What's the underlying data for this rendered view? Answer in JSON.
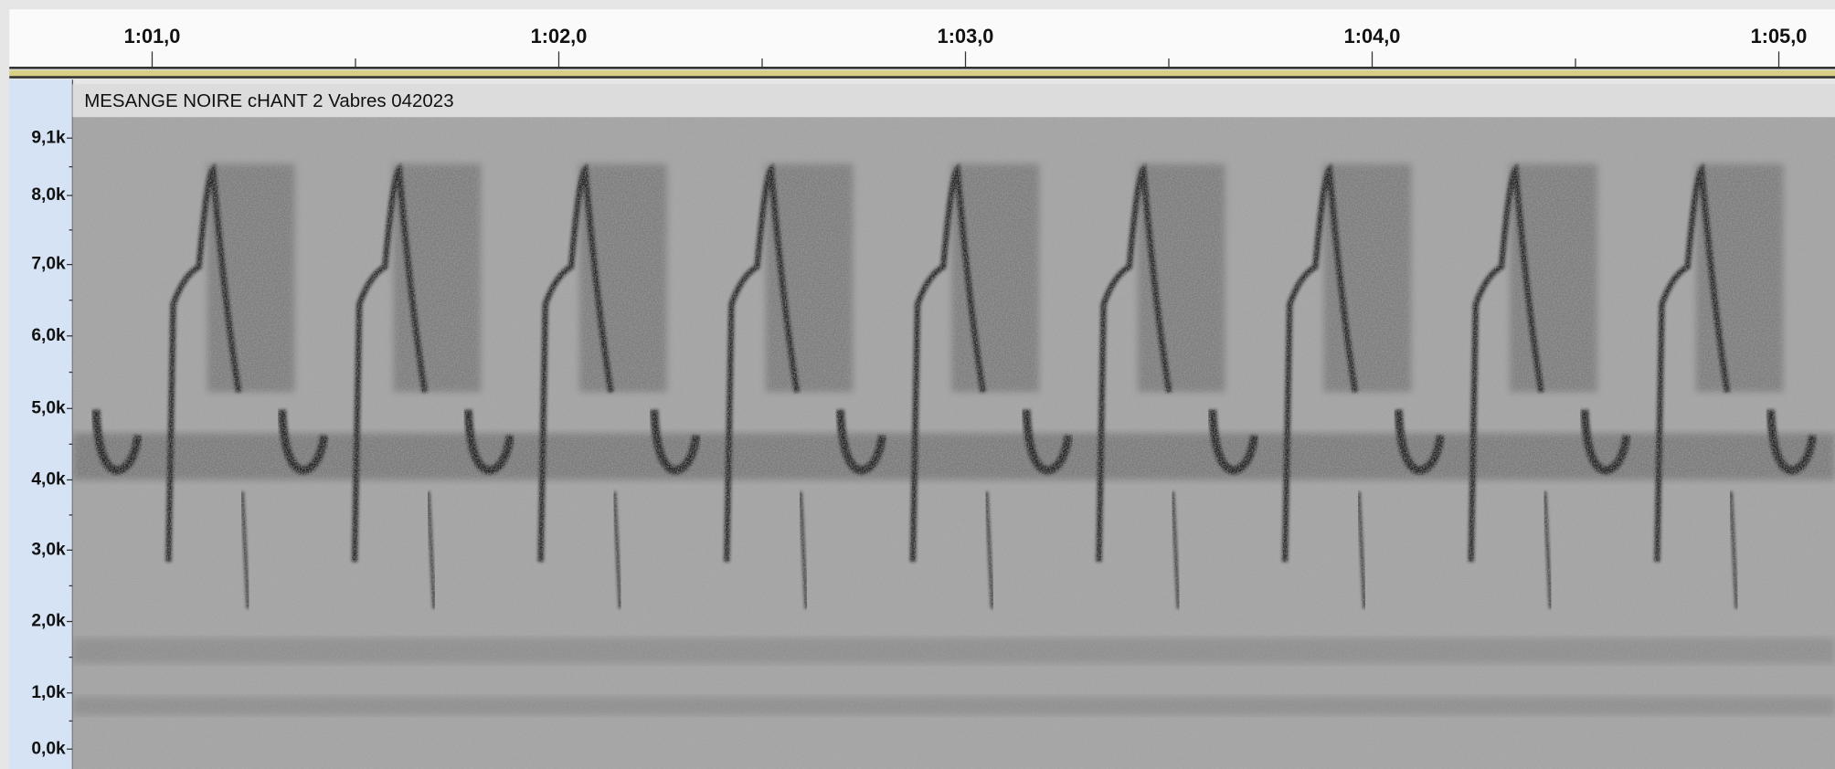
{
  "ruler": {
    "labels": [
      "1:01,0",
      "1:02,0",
      "1:03,0",
      "1:04,0",
      "1:05,0"
    ]
  },
  "track": {
    "name": "MESANGE NOIRE  cHANT 2 Vabres 042023",
    "frequency_labels": [
      "9,1k",
      "8,0k",
      "7,0k",
      "6,0k",
      "5,0k",
      "4,0k",
      "3,0k",
      "2,0k",
      "1,0k",
      "0,0k"
    ]
  }
}
